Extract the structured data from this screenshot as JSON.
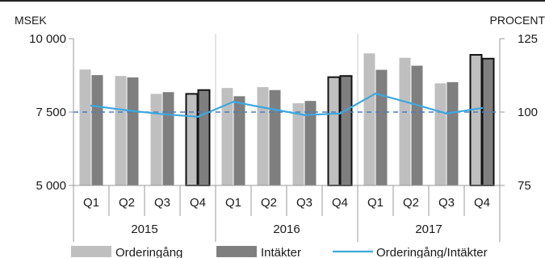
{
  "chart_data": {
    "type": "bar",
    "left_axis_label": "MSEK",
    "right_axis_label": "PROCENT",
    "left_ylim": [
      5000,
      10000
    ],
    "right_ylim": [
      75,
      125
    ],
    "left_ticks": [
      "10 000",
      "7 500",
      "5 000"
    ],
    "left_tick_values": [
      10000,
      7500,
      5000
    ],
    "right_ticks": [
      "125",
      "100",
      "75"
    ],
    "right_tick_values": [
      125,
      100,
      75
    ],
    "reference_line": 100,
    "categories": [
      "Q1",
      "Q2",
      "Q3",
      "Q4",
      "Q1",
      "Q2",
      "Q3",
      "Q4",
      "Q1",
      "Q2",
      "Q3",
      "Q4"
    ],
    "years": [
      "2015",
      "2016",
      "2017"
    ],
    "highlighted_quarter": "Q4",
    "series": [
      {
        "name": "Orderingång",
        "axis": "left",
        "color": "#bfbfbf",
        "values": [
          8950,
          8730,
          8120,
          8120,
          8320,
          8350,
          7800,
          8690,
          9500,
          9350,
          8480,
          9450
        ]
      },
      {
        "name": "Intäkter",
        "axis": "left",
        "color": "#7f7f7f",
        "values": [
          8760,
          8680,
          8180,
          8250,
          8040,
          8250,
          7880,
          8730,
          8940,
          9080,
          8520,
          9320
        ]
      },
      {
        "name": "Orderingång/Intäkter",
        "axis": "right",
        "color": "#3ea8de",
        "type": "line",
        "values": [
          102.2,
          100.6,
          99.3,
          98.4,
          103.5,
          101.2,
          99.0,
          99.5,
          106.3,
          103.0,
          99.5,
          101.4
        ]
      }
    ]
  }
}
